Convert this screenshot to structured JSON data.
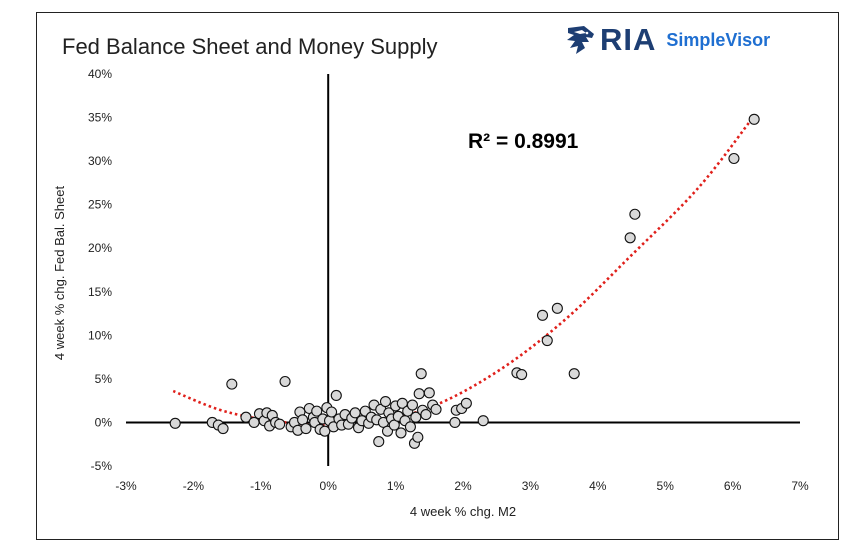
{
  "logo": {
    "brand": "RIA",
    "product": "SimpleVisor",
    "icon": "eagle-head-icon"
  },
  "chart_data": {
    "type": "scatter",
    "title": "Fed Balance Sheet and Money Supply",
    "xlabel": "4 week % chg. M2",
    "ylabel": "4 week % chg. Fed Bal. Sheet",
    "xlim": [
      -3,
      7
    ],
    "ylim": [
      -5,
      40
    ],
    "xticks": [
      -3,
      -2,
      -1,
      0,
      1,
      2,
      3,
      4,
      5,
      6,
      7
    ],
    "yticks": [
      -5,
      0,
      5,
      10,
      15,
      20,
      25,
      30,
      35,
      40
    ],
    "xtick_labels": [
      "-3%",
      "-2%",
      "-1%",
      "0%",
      "1%",
      "2%",
      "3%",
      "4%",
      "5%",
      "6%",
      "7%"
    ],
    "ytick_labels": [
      "-5%",
      "0%",
      "5%",
      "10%",
      "15%",
      "20%",
      "25%",
      "30%",
      "35%",
      "40%"
    ],
    "grid": false,
    "annotation": "R² = 0.8991",
    "trendline": {
      "kind": "polynomial",
      "color": "#e0201b",
      "style": "dotted",
      "x_range": [
        -2.3,
        6.3
      ],
      "points": [
        [
          -2.3,
          3.6
        ],
        [
          -1.5,
          1.2
        ],
        [
          -0.5,
          -0.1
        ],
        [
          0.5,
          -0.2
        ],
        [
          1.5,
          1.7
        ],
        [
          2.5,
          5.8
        ],
        [
          3.5,
          11.7
        ],
        [
          4.5,
          19.2
        ],
        [
          5.5,
          27.0
        ],
        [
          6.3,
          35.0
        ]
      ]
    },
    "marker_color": "#d9d9d9",
    "series": [
      {
        "points": [
          [
            -2.27,
            -0.1
          ],
          [
            -1.72,
            0.0
          ],
          [
            -1.63,
            -0.3
          ],
          [
            -1.56,
            -0.7
          ],
          [
            -1.43,
            4.4
          ],
          [
            -1.22,
            0.6
          ],
          [
            -1.1,
            0.0
          ],
          [
            -1.02,
            1.0
          ],
          [
            -0.95,
            0.2
          ],
          [
            -0.91,
            1.1
          ],
          [
            -0.87,
            -0.4
          ],
          [
            -0.83,
            0.8
          ],
          [
            -0.78,
            0.0
          ],
          [
            -0.72,
            -0.2
          ],
          [
            -0.64,
            4.7
          ],
          [
            -0.55,
            -0.5
          ],
          [
            -0.5,
            0.0
          ],
          [
            -0.45,
            -0.9
          ],
          [
            -0.42,
            1.2
          ],
          [
            -0.38,
            0.3
          ],
          [
            -0.33,
            -0.7
          ],
          [
            -0.28,
            1.6
          ],
          [
            -0.22,
            0.6
          ],
          [
            -0.2,
            0.0
          ],
          [
            -0.17,
            1.3
          ],
          [
            -0.12,
            -0.8
          ],
          [
            -0.08,
            0.4
          ],
          [
            -0.05,
            -1.0
          ],
          [
            -0.02,
            1.7
          ],
          [
            0.02,
            0.2
          ],
          [
            0.05,
            1.2
          ],
          [
            0.08,
            -0.5
          ],
          [
            0.12,
            3.1
          ],
          [
            0.16,
            0.4
          ],
          [
            0.2,
            -0.3
          ],
          [
            0.25,
            0.9
          ],
          [
            0.3,
            -0.2
          ],
          [
            0.35,
            0.5
          ],
          [
            0.4,
            1.1
          ],
          [
            0.45,
            -0.6
          ],
          [
            0.5,
            0.2
          ],
          [
            0.55,
            1.3
          ],
          [
            0.6,
            -0.1
          ],
          [
            0.64,
            0.6
          ],
          [
            0.68,
            2.0
          ],
          [
            0.72,
            0.3
          ],
          [
            0.75,
            -2.2
          ],
          [
            0.78,
            1.5
          ],
          [
            0.82,
            0.0
          ],
          [
            0.85,
            2.4
          ],
          [
            0.88,
            -1.0
          ],
          [
            0.9,
            1.1
          ],
          [
            0.94,
            0.4
          ],
          [
            0.98,
            -0.3
          ],
          [
            1.0,
            1.9
          ],
          [
            1.04,
            0.7
          ],
          [
            1.08,
            -1.2
          ],
          [
            1.1,
            2.2
          ],
          [
            1.14,
            0.2
          ],
          [
            1.18,
            1.3
          ],
          [
            1.22,
            -0.5
          ],
          [
            1.25,
            2.0
          ],
          [
            1.28,
            -2.4
          ],
          [
            1.3,
            0.6
          ],
          [
            1.33,
            -1.7
          ],
          [
            1.35,
            3.3
          ],
          [
            1.38,
            5.6
          ],
          [
            1.4,
            1.4
          ],
          [
            1.45,
            0.9
          ],
          [
            1.5,
            3.4
          ],
          [
            1.55,
            2.0
          ],
          [
            1.6,
            1.5
          ],
          [
            1.88,
            0.0
          ],
          [
            1.9,
            1.4
          ],
          [
            1.98,
            1.6
          ],
          [
            2.05,
            2.2
          ],
          [
            2.3,
            0.2
          ],
          [
            2.8,
            5.7
          ],
          [
            2.87,
            5.5
          ],
          [
            3.18,
            12.3
          ],
          [
            3.25,
            9.4
          ],
          [
            3.4,
            13.1
          ],
          [
            3.65,
            5.6
          ],
          [
            4.48,
            21.2
          ],
          [
            4.55,
            23.9
          ],
          [
            6.02,
            30.3
          ],
          [
            6.32,
            34.8
          ]
        ]
      }
    ]
  }
}
